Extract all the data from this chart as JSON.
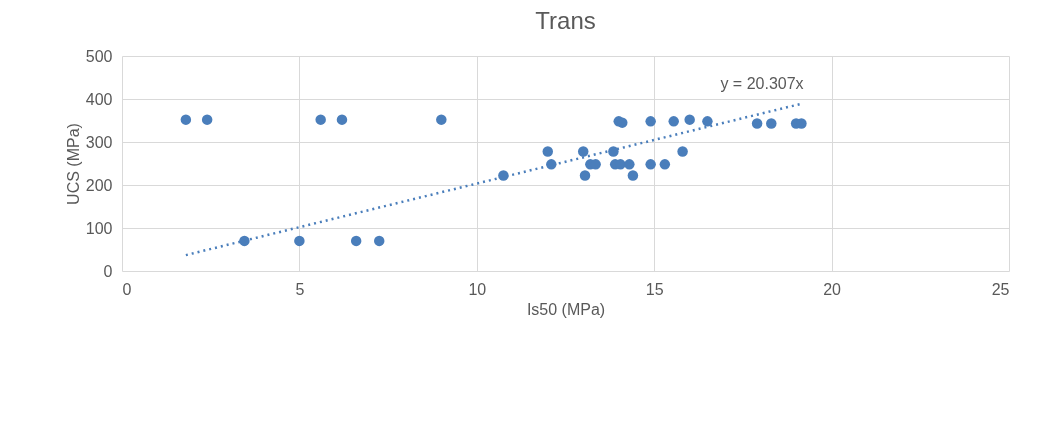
{
  "chart_data": {
    "type": "scatter",
    "title": "Trans",
    "xlabel": "Is50 (MPa)",
    "ylabel": "UCS (MPa)",
    "xlim": [
      0,
      25
    ],
    "xticks": [
      0,
      5,
      10,
      15,
      20,
      25
    ],
    "ylim": [
      0,
      500
    ],
    "yticks": [
      0,
      100,
      200,
      300,
      400,
      500
    ],
    "grid": true,
    "marker": "circle",
    "series": [
      {
        "color": "#4a7ebb",
        "x": [
          1.8,
          2.4,
          5.6,
          6.2,
          9.0,
          3.45,
          5.0,
          6.6,
          7.25,
          10.75,
          12.0,
          12.1,
          13.0,
          13.05,
          13.2,
          13.35,
          13.85,
          13.9,
          14.05,
          14.0,
          14.1,
          14.3,
          14.4,
          14.9,
          14.9,
          15.3,
          15.55,
          15.8,
          16.0,
          16.5,
          17.9,
          18.3,
          19.0,
          19.15
        ],
        "values": [
          352,
          352,
          352,
          352,
          352,
          70,
          70,
          70,
          70,
          222,
          278,
          248,
          278,
          222,
          248,
          248,
          278,
          248,
          248,
          348,
          345,
          248,
          222,
          348,
          248,
          248,
          348,
          278,
          352,
          348,
          343,
          343,
          343,
          343
        ]
      },
      {
        "type": "line",
        "marker": "none",
        "line_style": "dotted",
        "color": "#4a7ebb",
        "x": [
          1.8,
          19.15
        ],
        "values": [
          37,
          389
        ]
      }
    ],
    "annotations": [
      "y = 20.307x"
    ]
  }
}
